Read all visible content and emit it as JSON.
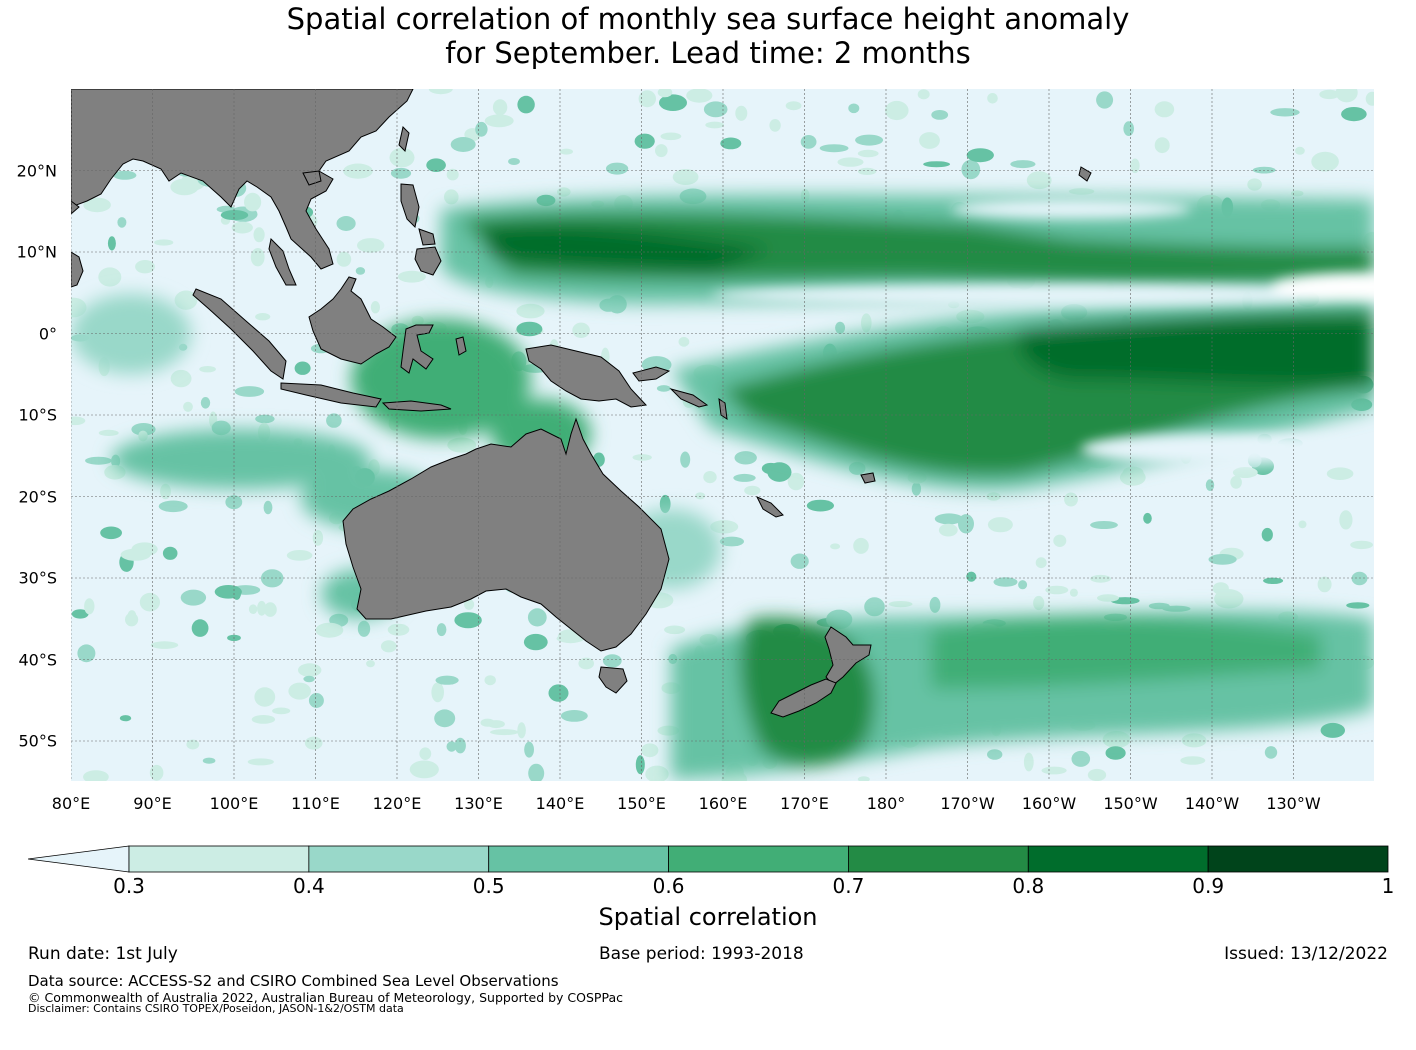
{
  "title": {
    "line1": "Spatial correlation of monthly sea surface height anomaly",
    "line2": "for September. Lead time: 2 months"
  },
  "map": {
    "lat_labels": [
      "20°N",
      "10°N",
      "0°",
      "10°S",
      "20°S",
      "30°S",
      "40°S",
      "50°S"
    ],
    "lon_labels": [
      "80°E",
      "90°E",
      "100°E",
      "110°E",
      "120°E",
      "130°E",
      "140°E",
      "150°E",
      "160°E",
      "170°E",
      "180°",
      "170°W",
      "160°W",
      "150°W",
      "140°W",
      "130°W"
    ],
    "land_color": "#808080",
    "ocean_low_color": "#e6f4fa"
  },
  "colorbar": {
    "ticks": [
      "0.3",
      "0.4",
      "0.5",
      "0.6",
      "0.7",
      "0.8",
      "0.9",
      "1"
    ],
    "colors": [
      "#ccede4",
      "#99d8c9",
      "#66c2a4",
      "#41ae76",
      "#238b45",
      "#006d2c",
      "#00441b"
    ],
    "under_color": "#e6f4fa",
    "label": "Spatial correlation"
  },
  "footer": {
    "run_date": "Run date: 1st July",
    "base_period": "Base period: 1993-2018",
    "issued": "Issued: 13/12/2022",
    "data_source": "Data source: ACCESS-S2 and CSIRO Combined Sea Level Observations",
    "copyright": "© Commonwealth of Australia 2022, Australian Bureau of Meteorology, Supported by COSPPac",
    "disclaimer": "Disclaimer: Contains CSIRO TOPEX/Poseidon, JASON-1&2/OSTM data"
  }
}
